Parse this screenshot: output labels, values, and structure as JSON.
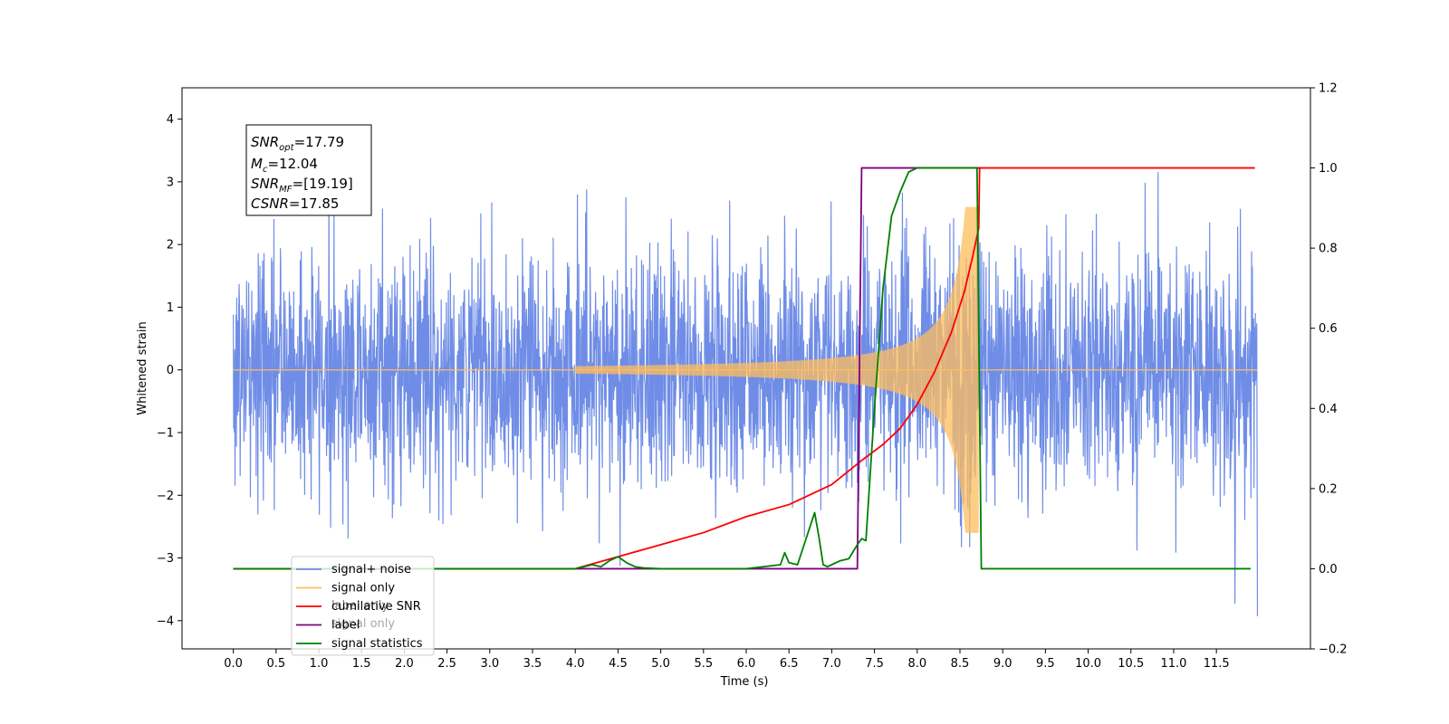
{
  "chart_data": {
    "type": "line",
    "xlabel": "Time (s)",
    "ylabel": "Whitened strain",
    "xlim": [
      -0.6,
      12.6
    ],
    "ylim": [
      -4.45,
      4.5
    ],
    "y2lim": [
      -0.2,
      1.2
    ],
    "x_ticks": [
      "0.0",
      "0.5",
      "1.0",
      "1.5",
      "2.0",
      "2.5",
      "3.0",
      "3.5",
      "4.0",
      "4.5",
      "5.0",
      "5.5",
      "6.0",
      "6.5",
      "7.0",
      "7.5",
      "8.0",
      "8.5",
      "9.0",
      "9.5",
      "10.0",
      "10.5",
      "11.0",
      "11.5"
    ],
    "y_ticks": [
      "4",
      "3",
      "2",
      "1",
      "0",
      "−1",
      "−2",
      "−3",
      "−4"
    ],
    "y2_ticks": [
      "1.2",
      "1.0",
      "0.8",
      "0.6",
      "0.4",
      "0.2",
      "0.0",
      "−0.2"
    ],
    "signal_window": {
      "start": 7.35,
      "end": 8.72
    },
    "annotation": {
      "snr_opt": {
        "base": "SNR",
        "sub": "opt",
        "value": "=17.79"
      },
      "mc": {
        "base": "M",
        "sub": "c",
        "value": "=12.04"
      },
      "snr_mf": {
        "base": "SNR",
        "sub": "MF",
        "value": "=[19.19]"
      },
      "csnr": {
        "base": "CSNR",
        "value": "=17.85"
      }
    },
    "series": [
      {
        "name": "signal+ noise",
        "color": "#6f8de6",
        "axis": "left",
        "kind": "noise"
      },
      {
        "name": "signal only",
        "color": "#ffbe5c",
        "axis": "left",
        "kind": "chirp"
      },
      {
        "name": "cumilative SNR",
        "color": "#ff0000",
        "axis": "right",
        "x": [
          0.0,
          4.0,
          4.5,
          5.0,
          5.5,
          6.0,
          6.5,
          7.0,
          7.35,
          7.6,
          7.8,
          8.0,
          8.2,
          8.4,
          8.55,
          8.65,
          8.72,
          8.73,
          11.95
        ],
        "y": [
          0.0,
          0.0,
          0.03,
          0.06,
          0.09,
          0.13,
          0.16,
          0.21,
          0.27,
          0.31,
          0.35,
          0.41,
          0.49,
          0.59,
          0.69,
          0.78,
          0.85,
          1.0,
          1.0
        ]
      },
      {
        "name": "label",
        "color": "#800080",
        "axis": "right",
        "x": [
          0.0,
          4.0,
          7.3,
          7.35,
          8.72,
          8.73
        ],
        "y": [
          0.0,
          0.0,
          0.0,
          1.0,
          1.0,
          1.0
        ]
      },
      {
        "name": "signal statistics",
        "color": "#008000",
        "axis": "right",
        "x": [
          0.0,
          4.0,
          4.2,
          4.3,
          4.4,
          4.5,
          4.6,
          4.7,
          4.8,
          5.0,
          6.0,
          6.4,
          6.45,
          6.5,
          6.6,
          6.8,
          6.85,
          6.9,
          6.95,
          7.0,
          7.1,
          7.2,
          7.3,
          7.35,
          7.4,
          7.5,
          7.6,
          7.7,
          7.8,
          7.9,
          8.0,
          8.1,
          8.7,
          8.75,
          8.8,
          11.9
        ],
        "y": [
          0.0,
          0.0,
          0.01,
          0.005,
          0.02,
          0.03,
          0.015,
          0.005,
          0.002,
          0.0,
          0.0,
          0.01,
          0.04,
          0.015,
          0.01,
          0.14,
          0.08,
          0.01,
          0.005,
          0.01,
          0.02,
          0.025,
          0.06,
          0.075,
          0.07,
          0.4,
          0.7,
          0.88,
          0.94,
          0.99,
          1.0,
          1.0,
          1.0,
          0.0,
          0.0,
          0.0
        ]
      }
    ],
    "legend": {
      "position": "lower-left",
      "entries": [
        "signal+ noise",
        "signal only",
        "cumilative SNR",
        "label",
        "signal statistics"
      ],
      "hidden_entries": [
        "label only",
        "signal only"
      ]
    }
  }
}
